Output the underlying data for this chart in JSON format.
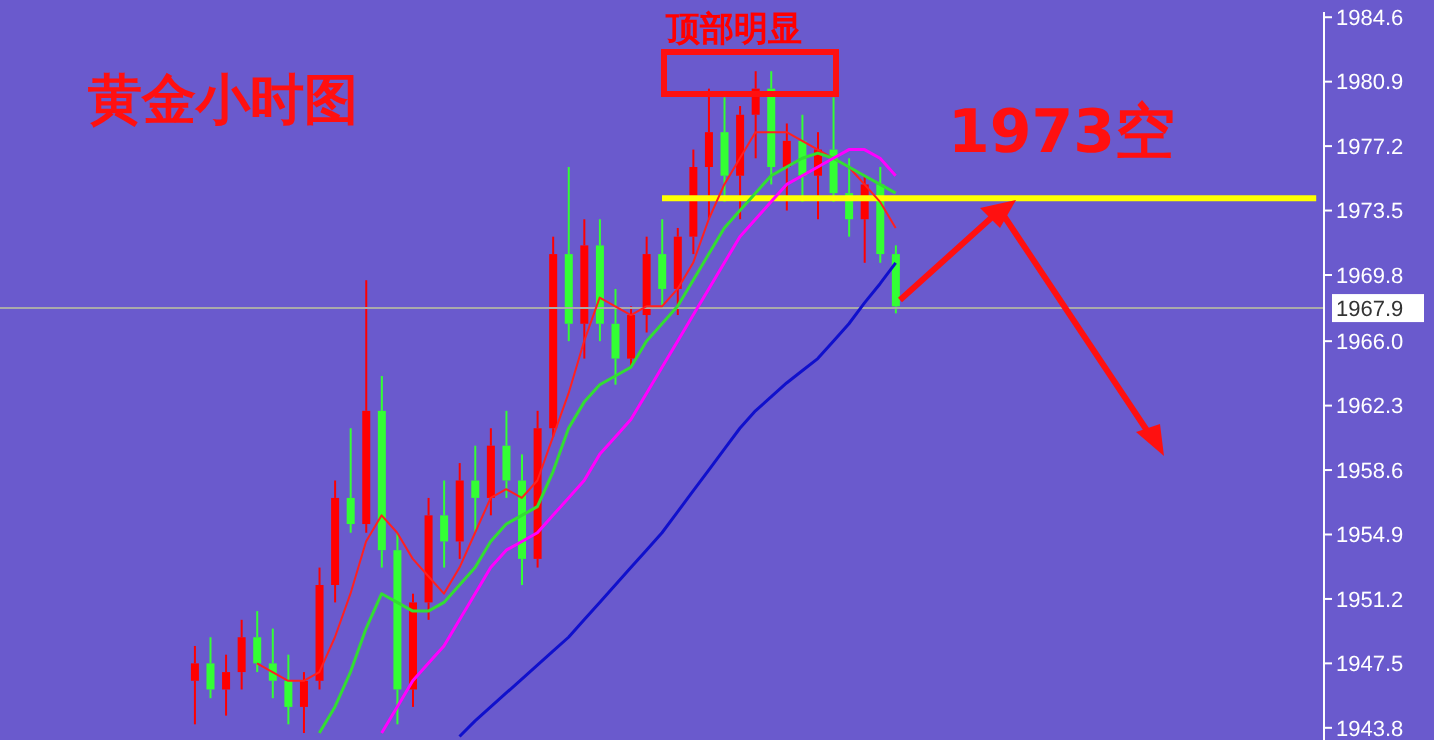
{
  "chart_data": {
    "type": "candlestick",
    "title": "黄金小时图",
    "annotations": [
      "顶部明显",
      "1973空"
    ],
    "categories": [
      null,
      null,
      null,
      null,
      null,
      null,
      null,
      null,
      null,
      null,
      null,
      null,
      null,
      null,
      null,
      null,
      null,
      null,
      null,
      null,
      null,
      null,
      null,
      null,
      null,
      null,
      null,
      null,
      null,
      null,
      null,
      null,
      null,
      null,
      null,
      null,
      null,
      null,
      null,
      null,
      null,
      null,
      null,
      null,
      null,
      null,
      null,
      null,
      null,
      null,
      null,
      null,
      null,
      null,
      null,
      null,
      null,
      null,
      null,
      null,
      null,
      null,
      null,
      null,
      null,
      null,
      null,
      null,
      null,
      null,
      null,
      null,
      null,
      null,
      null,
      null,
      null,
      null,
      null,
      null,
      null,
      null,
      null,
      null,
      null
    ],
    "ohlc": [
      null,
      null,
      null,
      null,
      null,
      null,
      null,
      null,
      null,
      null,
      null,
      null,
      [
        1946.5,
        1948.5,
        1944,
        1947.5
      ],
      [
        1947.5,
        1949,
        1945.5,
        1946
      ],
      [
        1946,
        1948,
        1944.5,
        1947
      ],
      [
        1947,
        1950,
        1946,
        1949
      ],
      [
        1949,
        1950.5,
        1947,
        1947.5
      ],
      [
        1947.5,
        1949.5,
        1945.5,
        1946.5
      ],
      [
        1946.5,
        1948,
        1944,
        1945
      ],
      [
        1945,
        1947,
        1943.5,
        1946.5
      ],
      [
        1946.5,
        1953,
        1946,
        1952
      ],
      [
        1952,
        1958,
        1951,
        1957
      ],
      [
        1957,
        1961,
        1955,
        1955.5
      ],
      [
        1955.5,
        1969.5,
        1955,
        1962
      ],
      [
        1962,
        1964,
        1953,
        1954
      ],
      [
        1954,
        1955,
        1944,
        1946
      ],
      [
        1946,
        1951.5,
        1945,
        1951
      ],
      [
        1951,
        1957,
        1950,
        1956
      ],
      [
        1956,
        1958,
        1953,
        1954.5
      ],
      [
        1954.5,
        1959,
        1953.5,
        1958
      ],
      [
        1958,
        1960,
        1955,
        1957
      ],
      [
        1957,
        1961,
        1956,
        1960
      ],
      [
        1960,
        1962,
        1957,
        1958
      ],
      [
        1958,
        1959.5,
        1952,
        1953.5
      ],
      [
        1953.5,
        1962,
        1953,
        1961
      ],
      [
        1961,
        1972,
        1960.5,
        1971
      ],
      [
        1971,
        1976,
        1966,
        1967
      ],
      [
        1967,
        1973,
        1965,
        1971.5
      ],
      [
        1971.5,
        1973,
        1966,
        1967
      ],
      [
        1967,
        1969,
        1963.5,
        1965
      ],
      [
        1965,
        1968,
        1964.5,
        1967.5
      ],
      [
        1967.5,
        1972,
        1966.5,
        1971
      ],
      [
        1971,
        1973,
        1968,
        1969
      ],
      [
        1969,
        1972.5,
        1967.5,
        1972
      ],
      [
        1972,
        1977,
        1971,
        1976
      ],
      [
        1976,
        1980.5,
        1973,
        1978
      ],
      [
        1978,
        1980,
        1974,
        1975.5
      ],
      [
        1975.5,
        1979.5,
        1973,
        1979
      ],
      [
        1979,
        1981.5,
        1976.5,
        1980.5
      ],
      [
        1980.5,
        1981.5,
        1975,
        1976
      ],
      [
        1976,
        1978.5,
        1973.5,
        1977.5
      ],
      [
        1977.5,
        1979,
        1974,
        1975.5
      ],
      [
        1975.5,
        1978,
        1973,
        1977
      ],
      [
        1977,
        1980,
        1974,
        1974.5
      ],
      [
        1974.5,
        1976.5,
        1972,
        1973
      ],
      [
        1973,
        1975.5,
        1970.5,
        1975
      ],
      [
        1975,
        1976,
        1970.5,
        1971
      ],
      [
        1971,
        1971.5,
        1967.6,
        1968
      ],
      null,
      null,
      null,
      null,
      null,
      null,
      null,
      null,
      null,
      null,
      null,
      null,
      null,
      null,
      null,
      null,
      null,
      null,
      null,
      null,
      null,
      null,
      null,
      null,
      null,
      null,
      null
    ],
    "colors": [
      null,
      null,
      null,
      null,
      null,
      null,
      null,
      null,
      null,
      null,
      null,
      null,
      "#ff0000",
      "#33ff33",
      "#ff0000",
      "#ff0000",
      "#33ff33",
      "#33ff33",
      "#33ff33",
      "#ff0000",
      "#ff0000",
      "#ff0000",
      "#33ff33",
      "#ff0000",
      "#33ff33",
      "#33ff33",
      "#ff0000",
      "#ff0000",
      "#33ff33",
      "#ff0000",
      "#33ff33",
      "#ff0000",
      "#33ff33",
      "#33ff33",
      "#ff0000",
      "#ff0000",
      "#33ff33",
      "#ff0000",
      "#33ff33",
      "#33ff33",
      "#ff0000",
      "#ff0000",
      "#33ff33",
      "#ff0000",
      "#ff0000",
      "#ff0000",
      "#33ff33",
      "#ff0000",
      "#ff0000",
      "#33ff33",
      "#ff0000",
      "#33ff33",
      "#ff0000",
      "#33ff33",
      "#33ff33",
      "#ff0000",
      "#33ff33",
      "#33ff33",
      null,
      null,
      null,
      null,
      null,
      null,
      null,
      null,
      null,
      null,
      null,
      null,
      null,
      null,
      null,
      null,
      null,
      null,
      null,
      null,
      null,
      null,
      null,
      null,
      null,
      null,
      null
    ],
    "series": [
      {
        "type": "line",
        "color": "#ff2020",
        "values": [
          null,
          null,
          null,
          null,
          null,
          null,
          null,
          null,
          null,
          null,
          null,
          null,
          null,
          null,
          null,
          null,
          1947.5,
          1947,
          1946.5,
          1946.5,
          1947,
          1949,
          1951.5,
          1954.5,
          1956,
          1955,
          1953.5,
          1952.5,
          1951.5,
          1953,
          1955,
          1957,
          1957.5,
          1957,
          1958,
          1960.5,
          1963,
          1966,
          1968.5,
          1968,
          1967.5,
          1968,
          1968,
          1969,
          1970.5,
          1973,
          1975,
          1976.5,
          1978,
          1978,
          1978,
          1977.5,
          1977,
          1976.5,
          1976,
          1975,
          1974,
          1972.5,
          null,
          null,
          null,
          null,
          null,
          null,
          null,
          null,
          null,
          null,
          null,
          null,
          null,
          null,
          null,
          null,
          null,
          null,
          null,
          null,
          null,
          null,
          null,
          null,
          null,
          null,
          null
        ]
      },
      {
        "type": "line",
        "color": "#33dd33",
        "values": [
          null,
          null,
          null,
          null,
          null,
          null,
          null,
          null,
          null,
          null,
          null,
          null,
          null,
          null,
          null,
          null,
          null,
          null,
          null,
          null,
          1943.5,
          1945,
          1947,
          1949.5,
          1951.5,
          1951,
          1950.5,
          1950.5,
          1951,
          1952,
          1953,
          1954.5,
          1955.5,
          1956,
          1956.5,
          1958.5,
          1961,
          1962.5,
          1963.5,
          1964,
          1964.5,
          1966,
          1967,
          1968,
          1969.5,
          1971,
          1972.5,
          1973.5,
          1974.5,
          1975.5,
          1976,
          1976.5,
          1976.8,
          1976.5,
          1976,
          1975.5,
          1975,
          1974.5,
          null,
          null,
          null,
          null,
          null,
          null,
          null,
          null,
          null,
          null,
          null,
          null,
          null,
          null,
          null,
          null,
          null,
          null,
          null,
          null,
          null,
          null,
          null,
          null,
          null,
          null,
          null
        ]
      },
      {
        "type": "line",
        "color": "#ff00ff",
        "values": [
          null,
          null,
          null,
          null,
          null,
          null,
          null,
          null,
          null,
          null,
          null,
          null,
          null,
          null,
          null,
          null,
          null,
          null,
          null,
          null,
          null,
          null,
          null,
          null,
          1943.5,
          1945,
          1946.5,
          1947.5,
          1948.5,
          1950,
          1951.5,
          1953,
          1954,
          1954.5,
          1955,
          1956,
          1957,
          1958,
          1959.5,
          1960.5,
          1961.5,
          1963,
          1964.5,
          1966,
          1967.5,
          1969,
          1970.5,
          1972,
          1973,
          1974,
          1975,
          1975.5,
          1976,
          1976.5,
          1977,
          1977,
          1976.5,
          1975.5,
          null,
          null,
          null,
          null,
          null,
          null,
          null,
          null,
          null,
          null,
          null,
          null,
          null,
          null,
          null,
          null,
          null,
          null,
          null,
          null,
          null,
          null,
          null,
          null,
          null,
          null,
          null
        ]
      },
      {
        "type": "line",
        "color": "#1010cc",
        "values": [
          null,
          null,
          null,
          null,
          null,
          null,
          null,
          null,
          null,
          null,
          null,
          null,
          null,
          null,
          null,
          null,
          null,
          null,
          null,
          null,
          null,
          null,
          null,
          null,
          null,
          null,
          null,
          null,
          null,
          1943.3,
          1944.2,
          1945,
          1945.8,
          1946.6,
          1947.4,
          1948.2,
          1949,
          1950,
          1951,
          1952,
          1953,
          1954,
          1955,
          1956.2,
          1957.4,
          1958.6,
          1959.8,
          1961,
          1962,
          1962.8,
          1963.6,
          1964.3,
          1965,
          1966,
          1967,
          1968.2,
          1969.3,
          1970.5,
          null,
          null,
          null,
          null,
          null,
          null,
          null,
          null,
          null,
          null,
          null,
          null,
          null,
          null,
          null,
          null,
          null,
          null,
          null,
          null,
          null,
          null,
          null,
          null,
          null,
          null,
          null
        ]
      }
    ],
    "ref_lines": [
      {
        "axis": "y",
        "value": 1967.9,
        "label": "1967.9",
        "color": "#aaaaaa"
      },
      {
        "axis": "y",
        "value": 1974.2,
        "label": null,
        "color": "#ffff00"
      }
    ],
    "ylim": [
      1943.1,
      1984.9
    ],
    "yticks": [
      1984.6,
      1980.9,
      1977.2,
      1973.5,
      1969.8,
      {
        "value": 1966,
        "label": "1966.0"
      },
      1962.3,
      1958.6,
      1954.9,
      1951.2,
      1947.5,
      1943.8
    ],
    "tick_labels": "y"
  }
}
